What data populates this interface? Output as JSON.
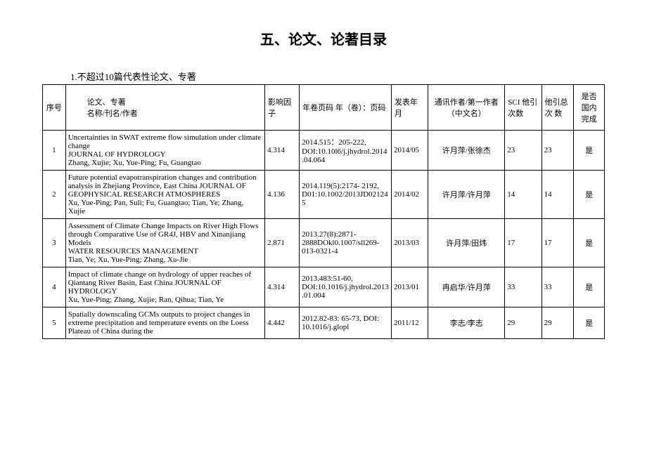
{
  "page": {
    "title": "五、论文、论著目录",
    "subtitle": "1.不超过10篇代表性论文、专著"
  },
  "headers": {
    "seq": "序号",
    "title": "论文、专著\n名称/刊名/作者",
    "impact": "影响因子",
    "ypc": "年卷页码 年（卷）：页码",
    "date": "发表年月",
    "author": "通讯作者/第一作者（中文名）",
    "sci": "SCI 他引次数",
    "total": "他引总次 数",
    "domestic": "是否 国内 完成"
  },
  "rows": [
    {
      "seq": "1",
      "title": "Uncertainties in SWAT extreme flow simulation under climate change\nJOURNAL OF HYDROLOGY\nZhang, Xujie; Xu, Yue-Ping; Fu, Guangtao",
      "impact": "4.314",
      "ypc": "2014.515：205-222, DOI:10.10l6/j.jhydrol.2014.04.064",
      "date": "2014/05",
      "author": "许月萍/张徐杰",
      "sci": "23",
      "total": "23",
      "domestic": "是"
    },
    {
      "seq": "2",
      "title": "Future potential evapotranspiration changes and contribution analysis in Zhejiang Province, East China JOURNAL OF GEOPHYSICAL RESEARCH ATMOSPHERES\nXu, Yue-Ping; Pan, Suli; Fu, Guangtao; Tian, Ye; Zhang, Xujie",
      "impact": "4.136",
      "ypc": "2014.119(5):2174- 2192, D01:10.1002/2013JD021245",
      "date": "2014/02",
      "author": "许月萍/许月萍",
      "sci": "14",
      "total": "14",
      "domestic": "是"
    },
    {
      "seq": "3",
      "title": "Assessment of Climate Change Impacts on River High Flows through Comparative Use of GR4J, HBV and Xinanjiang Models\nWATER RESOURCES MANAGEMENT\nTian, Ye; Xu, Yue-Ping; Zhang, Xu-Jie",
      "impact": "2.871",
      "ypc": "2013.27(8):2871-2888DOkl0.1007/sll269-013-0321-4",
      "date": "2013/03",
      "author": "许月萍/田炜",
      "sci": "17",
      "total": "17",
      "domestic": "是"
    },
    {
      "seq": "4",
      "title": "Impact of climate change on hydrology of upper reaches of Qiantang River Basin, East China JOURNAL OF HYDROLOGY\nXu, Yue-Ping; Zhang, Xujie; Ran, Qihua; Tian, Ye",
      "impact": "4.314",
      "ypc": "2013.483:51-60, DOI:10.1016/j.jhydrol.2013.01.004",
      "date": "2013/01",
      "author": "冉启华/许月萍",
      "sci": "33",
      "total": "33",
      "domestic": "是"
    },
    {
      "seq": "5",
      "title": "Spatially downscaling GCMs outputs to project changes in extreme precipitation and temperature events on the Loess Plateau of China during the",
      "impact": "4.442",
      "ypc": "2012.82-83: 65-73, DOI: 10.1016/j.glopl",
      "date": "2011/12",
      "author": "李志/李志",
      "sci": "29",
      "total": "29",
      "domestic": "是"
    }
  ]
}
